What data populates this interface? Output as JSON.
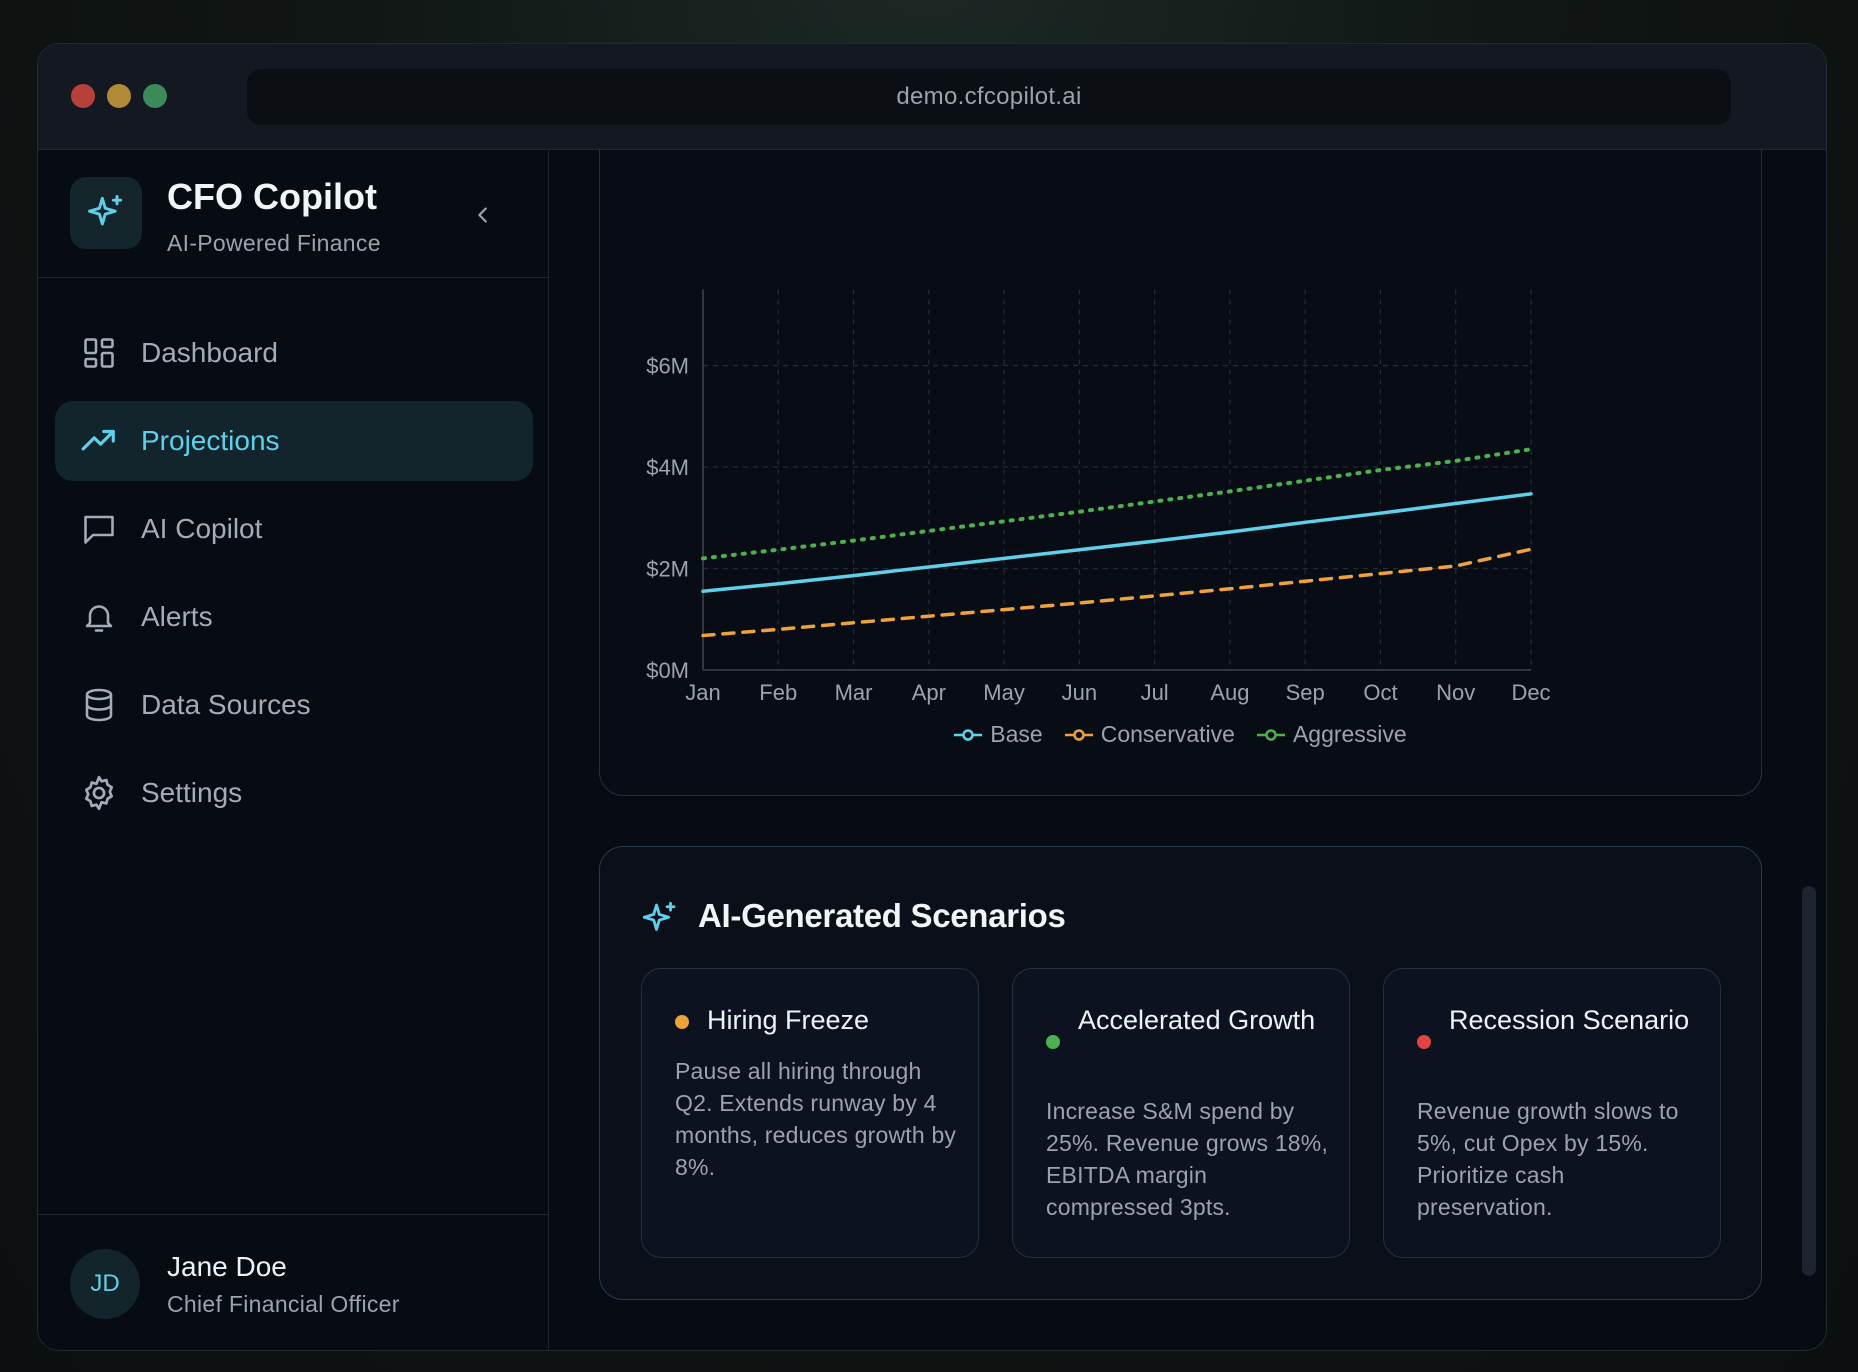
{
  "browser": {
    "url": "demo.cfcopilot.ai"
  },
  "brand": {
    "title": "CFO Copilot",
    "subtitle": "AI-Powered Finance"
  },
  "nav": {
    "items": [
      {
        "label": "Dashboard",
        "icon": "dashboard-icon",
        "active": false
      },
      {
        "label": "Projections",
        "icon": "trending-up-icon",
        "active": true
      },
      {
        "label": "AI Copilot",
        "icon": "chat-icon",
        "active": false
      },
      {
        "label": "Alerts",
        "icon": "bell-icon",
        "active": false
      },
      {
        "label": "Data Sources",
        "icon": "database-icon",
        "active": false
      },
      {
        "label": "Settings",
        "icon": "gear-icon",
        "active": false
      }
    ]
  },
  "user": {
    "initials": "JD",
    "name": "Jane Doe",
    "role": "Chief Financial Officer"
  },
  "colors": {
    "accent": "#5fd0ea",
    "base": "#5fd0ea",
    "conservative": "#f0a23a",
    "aggressive": "#4caf50",
    "recession": "#e0443e"
  },
  "chart_data": {
    "type": "line",
    "categories": [
      "Jan",
      "Feb",
      "Mar",
      "Apr",
      "May",
      "Jun",
      "Jul",
      "Aug",
      "Sep",
      "Oct",
      "Nov",
      "Dec"
    ],
    "y_tick_labels": [
      "$0M",
      "$2M",
      "$4M",
      "$6M"
    ],
    "y_ticks": [
      0,
      2,
      4,
      6
    ],
    "ylim": [
      0,
      7.5
    ],
    "grid": true,
    "legend_position": "bottom",
    "series": [
      {
        "name": "Base",
        "color": "#5fd0ea",
        "style": "solid",
        "values": [
          1.55,
          1.7,
          1.86,
          2.03,
          2.2,
          2.37,
          2.54,
          2.72,
          2.91,
          3.09,
          3.28,
          3.47
        ]
      },
      {
        "name": "Conservative",
        "color": "#f0a23a",
        "style": "dashed",
        "values": [
          0.68,
          0.8,
          0.93,
          1.06,
          1.19,
          1.32,
          1.46,
          1.6,
          1.75,
          1.9,
          2.05,
          2.38
        ]
      },
      {
        "name": "Aggressive",
        "color": "#4caf50",
        "style": "dotted",
        "values": [
          2.2,
          2.37,
          2.55,
          2.74,
          2.93,
          3.12,
          3.32,
          3.52,
          3.73,
          3.94,
          4.12,
          4.35
        ]
      }
    ]
  },
  "scenarios": {
    "title": "AI-Generated Scenarios",
    "items": [
      {
        "name": "Hiring Freeze",
        "color": "#f0a23a",
        "description": "Pause all hiring through Q2. Extends runway by 4 months, reduces growth by 8%."
      },
      {
        "name": "Accelerated Growth",
        "color": "#4caf50",
        "description": "Increase S&M spend by 25%. Revenue grows 18%, EBITDA margin compressed 3pts."
      },
      {
        "name": "Recession Scenario",
        "color": "#e0443e",
        "description": "Revenue growth slows to 5%, cut Opex by 15%. Prioritize cash preservation."
      }
    ]
  }
}
